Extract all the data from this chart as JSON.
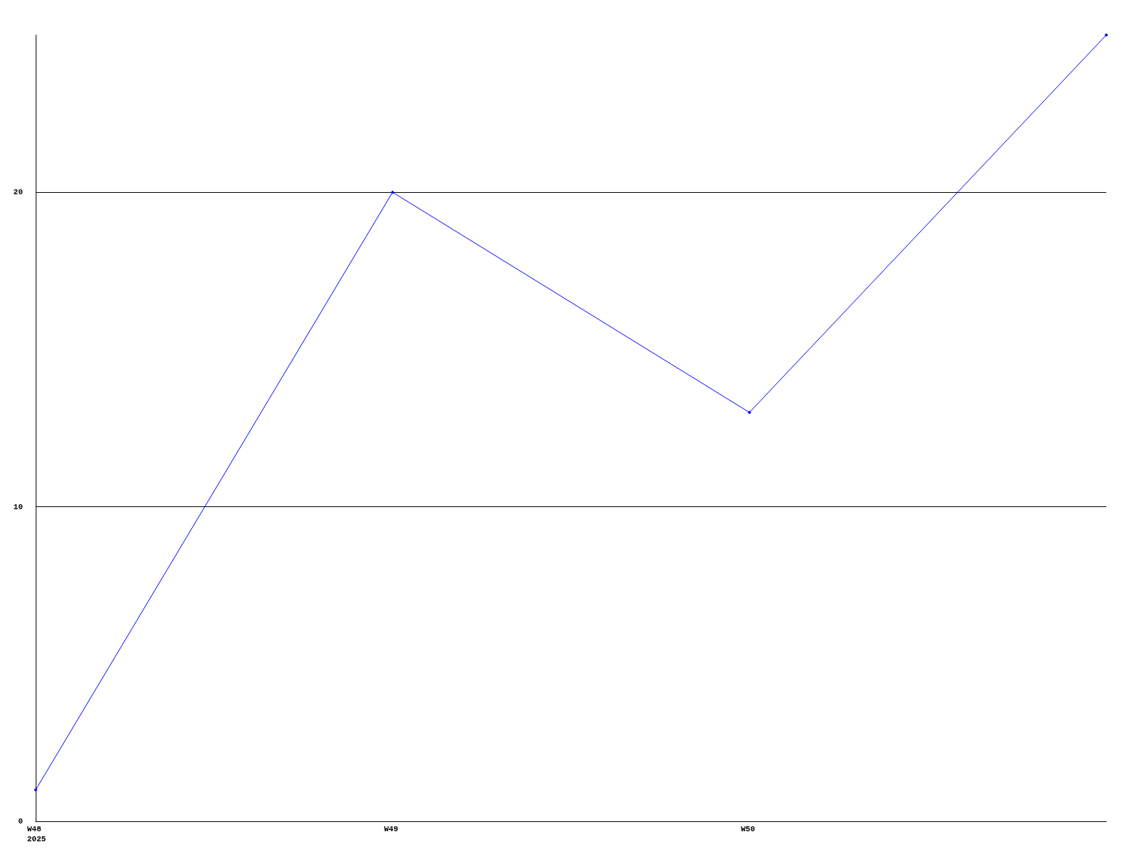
{
  "chart_data": {
    "type": "line",
    "categories": [
      "W48\n2025",
      "W49",
      "W50",
      null
    ],
    "series": [
      {
        "color": "#0000ff",
        "values": [
          1,
          20,
          13,
          25
        ]
      }
    ],
    "ylim": [
      0,
      25
    ],
    "yticks": [
      0,
      10,
      20
    ],
    "grid": "y",
    "marker": "diamond",
    "line_style": "solid"
  }
}
